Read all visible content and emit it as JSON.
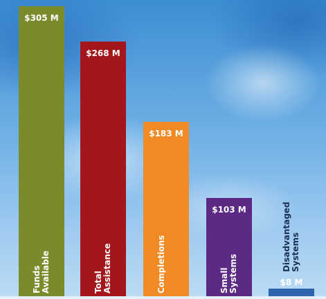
{
  "chart_data": {
    "type": "bar",
    "categories": [
      "Funds Available",
      "Total Assistance",
      "Completions",
      "Small Systems",
      "Disadvantaged Systems"
    ],
    "values": [
      305,
      268,
      183,
      103,
      8
    ],
    "value_labels": [
      "$305 M",
      "$268 M",
      "$183 M",
      "$103 M",
      "$8 M"
    ],
    "colors": [
      "#7b8b2b",
      "#a3171c",
      "#f08a24",
      "#5c2a85",
      "#2e64ad"
    ]
  }
}
